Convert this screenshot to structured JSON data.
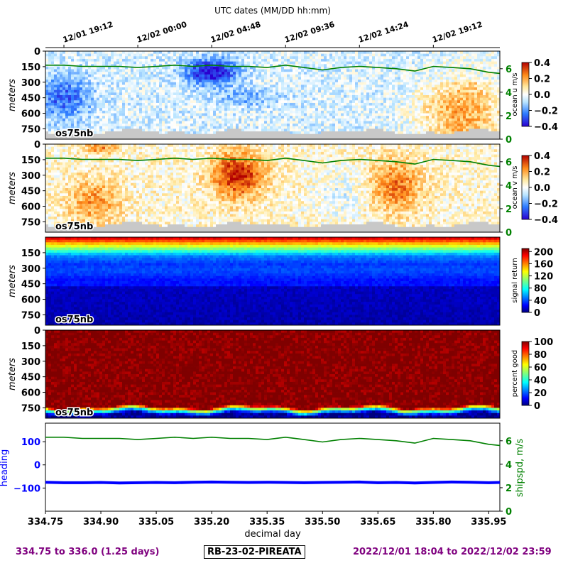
{
  "figure": {
    "top_title": "UTC dates (MM/DD hh:mm)",
    "xlabel": "decimal day",
    "footer_left": "334.75 to 336.0 (1.25 days)",
    "footer_center": "RB-23-02-PIREATA",
    "footer_right": "2022/12/01 18:04 to 2022/12/02 23:59",
    "colors": {
      "shipspeed": "#008000",
      "heading": "#0000ff",
      "footer": "#7f007f",
      "missing": "#c8c8c8"
    }
  },
  "chart_data": [
    {
      "type": "heatmap",
      "panel": "u",
      "ylabel": "meters",
      "colorbar_label": "ocean u m/s",
      "colormap": "diverging-blue-white-red",
      "clim": [
        -0.4,
        0.4
      ],
      "colorbar_ticks": [
        "0.4",
        "0.2",
        "0.0",
        "−0.2",
        "−0.4"
      ],
      "ylim": [
        0,
        850
      ],
      "yticks": [
        "0",
        "150",
        "300",
        "450",
        "600",
        "750"
      ],
      "right_axis_ticks": [
        "6",
        "4",
        "2",
        "0"
      ],
      "instrument_label": "os75nb",
      "overlay": "shipspeed"
    },
    {
      "type": "heatmap",
      "panel": "v",
      "ylabel": "meters",
      "colorbar_label": "ocean v m/s",
      "colormap": "diverging-blue-white-red",
      "clim": [
        -0.4,
        0.4
      ],
      "colorbar_ticks": [
        "0.4",
        "0.2",
        "0.0",
        "−0.2",
        "−0.4"
      ],
      "ylim": [
        0,
        850
      ],
      "yticks": [
        "0",
        "150",
        "300",
        "450",
        "600",
        "750"
      ],
      "right_axis_ticks": [
        "6",
        "4",
        "2",
        "0"
      ],
      "instrument_label": "os75nb",
      "overlay": "shipspeed"
    },
    {
      "type": "heatmap",
      "panel": "amp",
      "ylabel": "meters",
      "colorbar_label": "signal return",
      "colormap": "jet",
      "clim": [
        0,
        210
      ],
      "colorbar_ticks": [
        "200",
        "160",
        "120",
        "80",
        "40",
        "0"
      ],
      "ylim": [
        0,
        850
      ],
      "yticks": [
        "150",
        "300",
        "450",
        "600",
        "750"
      ],
      "instrument_label": "os75nb"
    },
    {
      "type": "heatmap",
      "panel": "pg",
      "ylabel": "meters",
      "colorbar_label": "percent good",
      "colormap": "jet",
      "clim": [
        0,
        100
      ],
      "colorbar_ticks": [
        "100",
        "80",
        "60",
        "40",
        "20",
        "0"
      ],
      "ylim": [
        0,
        850
      ],
      "yticks": [
        "0",
        "150",
        "300",
        "450",
        "600",
        "750"
      ],
      "instrument_label": "os75nb"
    },
    {
      "type": "line",
      "panel": "nav",
      "left_ylabel": "heading",
      "right_ylabel": "shipspd, m/s",
      "left_yticks": [
        "100",
        "0",
        "−100"
      ],
      "right_yticks": [
        "6",
        "4",
        "2",
        "0"
      ],
      "xlim": [
        334.75,
        335.98
      ],
      "xticks": [
        334.75,
        334.9,
        335.05,
        335.2,
        335.35,
        335.5,
        335.65,
        335.8,
        335.95
      ],
      "xtick_labels": [
        "334.75",
        "334.90",
        "335.05",
        "335.20",
        "335.35",
        "335.50",
        "335.65",
        "335.80",
        "335.95"
      ],
      "top_xticks": [
        334.8,
        335.0,
        335.2,
        335.4,
        335.6,
        335.8
      ],
      "top_xtick_labels": [
        "12/01 19:12",
        "12/02 00:00",
        "12/02 04:48",
        "12/02 09:36",
        "12/02 14:24",
        "12/02 19:12"
      ],
      "series": [
        {
          "name": "heading",
          "axis": "left",
          "x": [
            334.75,
            334.8,
            334.85,
            334.9,
            334.95,
            335.0,
            335.05,
            335.1,
            335.15,
            335.2,
            335.25,
            335.3,
            335.35,
            335.4,
            335.45,
            335.5,
            335.55,
            335.6,
            335.65,
            335.7,
            335.75,
            335.8,
            335.85,
            335.9,
            335.95,
            335.98
          ],
          "y": [
            -75,
            -77,
            -77,
            -76,
            -78,
            -77,
            -76,
            -77,
            -75,
            -74,
            -75,
            -76,
            -75,
            -76,
            -77,
            -76,
            -75,
            -74,
            -77,
            -76,
            -78,
            -76,
            -74,
            -75,
            -77,
            -76
          ]
        },
        {
          "name": "shipspeed",
          "axis": "right",
          "x": [
            334.75,
            334.8,
            334.85,
            334.9,
            334.95,
            335.0,
            335.05,
            335.1,
            335.15,
            335.2,
            335.25,
            335.3,
            335.35,
            335.4,
            335.45,
            335.5,
            335.55,
            335.6,
            335.65,
            335.7,
            335.75,
            335.8,
            335.85,
            335.9,
            335.95,
            335.98
          ],
          "y": [
            6.3,
            6.3,
            6.2,
            6.2,
            6.2,
            6.1,
            6.2,
            6.3,
            6.2,
            6.3,
            6.2,
            6.2,
            6.1,
            6.3,
            6.1,
            5.9,
            6.1,
            6.2,
            6.1,
            6.0,
            5.8,
            6.2,
            6.1,
            6.0,
            5.7,
            5.6
          ]
        }
      ]
    }
  ]
}
